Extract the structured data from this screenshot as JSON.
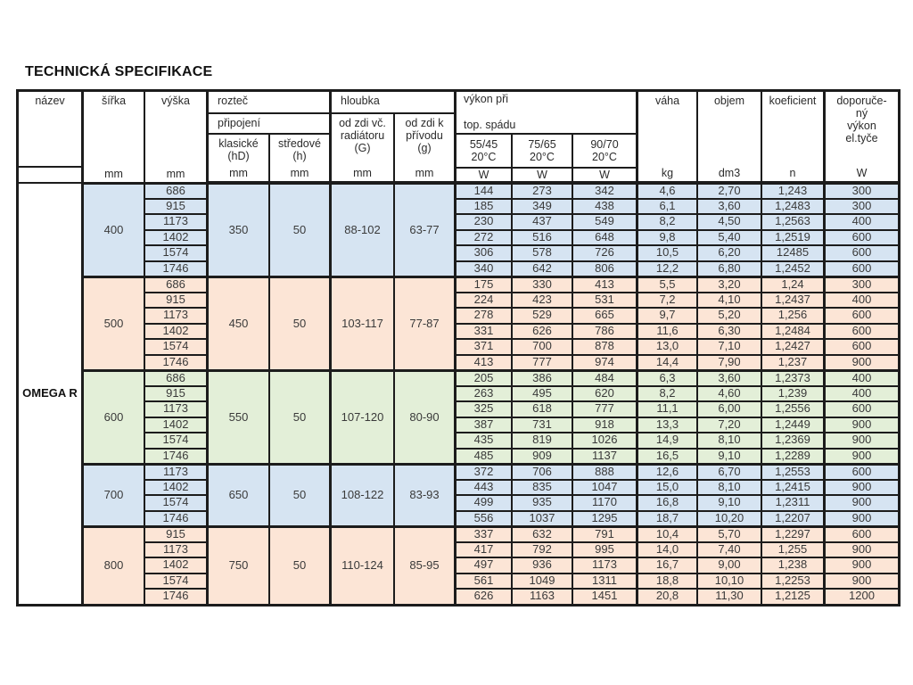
{
  "title": "TECHNICKÁ SPECIFIKACE",
  "product": "OMEGA R",
  "header": {
    "nazev": "název",
    "sirka": "šířka",
    "vyska": "výška",
    "roztec": "rozteč",
    "pripojeni": "připojení",
    "klasicke": "klasické\n(hD)",
    "stredove": "středové\n(h)",
    "hloubka": "hloubka",
    "od_zdi_radiator": "od zdi vč.\nradiátoru\n(G)",
    "od_zdi_privod": "od zdi k\npřívodu\n(g)",
    "vykon": "výkon při\ntop. spádu",
    "grad_55_45": "55/45\n20°C",
    "grad_75_65": "75/65\n20°C",
    "grad_90_70": "90/70\n20°C",
    "vaha": "váha",
    "objem": "objem",
    "koeficient": "koeficient",
    "doporuceny": "doporuče-\nný\nvýkon\nel.tyče",
    "unit_mm": "mm",
    "unit_w": "W",
    "unit_kg": "kg",
    "unit_dm3": "dm3",
    "unit_n": "n"
  },
  "colors": {
    "blue": "#d6e4f2",
    "peach": "#fce5d6",
    "green": "#e3efd8",
    "border": "#1c1c1c"
  },
  "groups": [
    {
      "sirka": "400",
      "bg": "#d6e4f2",
      "klasicke": "350",
      "stredove": "50",
      "hloubka_G": "88-102",
      "hloubka_g": "63-77",
      "rows": [
        [
          "686",
          "144",
          "273",
          "342",
          "4,6",
          "2,70",
          "1,243",
          "300"
        ],
        [
          "915",
          "185",
          "349",
          "438",
          "6,1",
          "3,60",
          "1,2483",
          "300"
        ],
        [
          "1173",
          "230",
          "437",
          "549",
          "8,2",
          "4,50",
          "1,2563",
          "400"
        ],
        [
          "1402",
          "272",
          "516",
          "648",
          "9,8",
          "5,40",
          "1,2519",
          "600"
        ],
        [
          "1574",
          "306",
          "578",
          "726",
          "10,5",
          "6,20",
          "12485",
          "600"
        ],
        [
          "1746",
          "340",
          "642",
          "806",
          "12,2",
          "6,80",
          "1,2452",
          "600"
        ]
      ]
    },
    {
      "sirka": "500",
      "bg": "#fce5d6",
      "klasicke": "450",
      "stredove": "50",
      "hloubka_G": "103-117",
      "hloubka_g": "77-87",
      "rows": [
        [
          "686",
          "175",
          "330",
          "413",
          "5,5",
          "3,20",
          "1,24",
          "300"
        ],
        [
          "915",
          "224",
          "423",
          "531",
          "7,2",
          "4,10",
          "1,2437",
          "400"
        ],
        [
          "1173",
          "278",
          "529",
          "665",
          "9,7",
          "5,20",
          "1,256",
          "600"
        ],
        [
          "1402",
          "331",
          "626",
          "786",
          "11,6",
          "6,30",
          "1,2484",
          "600"
        ],
        [
          "1574",
          "371",
          "700",
          "878",
          "13,0",
          "7,10",
          "1,2427",
          "600"
        ],
        [
          "1746",
          "413",
          "777",
          "974",
          "14,4",
          "7,90",
          "1,237",
          "900"
        ]
      ]
    },
    {
      "sirka": "600",
      "bg": "#e3efd8",
      "klasicke": "550",
      "stredove": "50",
      "hloubka_G": "107-120",
      "hloubka_g": "80-90",
      "rows": [
        [
          "686",
          "205",
          "386",
          "484",
          "6,3",
          "3,60",
          "1,2373",
          "400"
        ],
        [
          "915",
          "263",
          "495",
          "620",
          "8,2",
          "4,60",
          "1,239",
          "400"
        ],
        [
          "1173",
          "325",
          "618",
          "777",
          "11,1",
          "6,00",
          "1,2556",
          "600"
        ],
        [
          "1402",
          "387",
          "731",
          "918",
          "13,3",
          "7,20",
          "1,2449",
          "900"
        ],
        [
          "1574",
          "435",
          "819",
          "1026",
          "14,9",
          "8,10",
          "1,2369",
          "900"
        ],
        [
          "1746",
          "485",
          "909",
          "1137",
          "16,5",
          "9,10",
          "1,2289",
          "900"
        ]
      ]
    },
    {
      "sirka": "700",
      "bg": "#d6e4f2",
      "klasicke": "650",
      "stredove": "50",
      "hloubka_G": "108-122",
      "hloubka_g": "83-93",
      "rows": [
        [
          "1173",
          "372",
          "706",
          "888",
          "12,6",
          "6,70",
          "1,2553",
          "600"
        ],
        [
          "1402",
          "443",
          "835",
          "1047",
          "15,0",
          "8,10",
          "1,2415",
          "900"
        ],
        [
          "1574",
          "499",
          "935",
          "1170",
          "16,8",
          "9,10",
          "1,2311",
          "900"
        ],
        [
          "1746",
          "556",
          "1037",
          "1295",
          "18,7",
          "10,20",
          "1,2207",
          "900"
        ]
      ]
    },
    {
      "sirka": "800",
      "bg": "#fce5d6",
      "klasicke": "750",
      "stredove": "50",
      "hloubka_G": "110-124",
      "hloubka_g": "85-95",
      "rows": [
        [
          "915",
          "337",
          "632",
          "791",
          "10,4",
          "5,70",
          "1,2297",
          "600"
        ],
        [
          "1173",
          "417",
          "792",
          "995",
          "14,0",
          "7,40",
          "1,255",
          "900"
        ],
        [
          "1402",
          "497",
          "936",
          "1173",
          "16,7",
          "9,00",
          "1,238",
          "900"
        ],
        [
          "1574",
          "561",
          "1049",
          "1311",
          "18,8",
          "10,10",
          "1,2253",
          "900"
        ],
        [
          "1746",
          "626",
          "1163",
          "1451",
          "20,8",
          "11,30",
          "1,2125",
          "1200"
        ]
      ]
    }
  ]
}
